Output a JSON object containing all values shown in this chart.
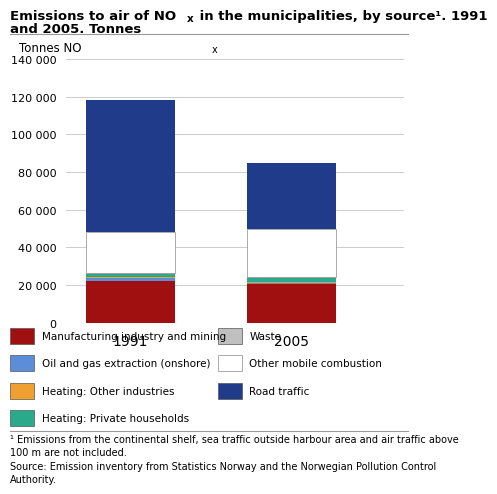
{
  "title": "Emissions to air of NO",
  "title_x_sub": "x",
  "title_rest": " in the municipalities, by source¹. 1991\nand 2005. Tonnes",
  "ylabel": "Tonnes NO",
  "ylabel_sub": "x",
  "years": [
    "1991",
    "2005"
  ],
  "categories": [
    "Manufacturing industry and mining",
    "Oil and gas extraction (onshore)",
    "Heating: Other industries",
    "Heating: Private households",
    "Waste",
    "Other mobile combustion",
    "Road traffic"
  ],
  "values_1991": [
    22000,
    1500,
    800,
    1500,
    500,
    22000,
    70000
  ],
  "values_2005": [
    20500,
    700,
    600,
    2200,
    500,
    25500,
    35000
  ],
  "colors": [
    "#a01010",
    "#5b8dd9",
    "#f0a030",
    "#2aaa8a",
    "#c0c0c0",
    "#ffffff",
    "#1f3b8a"
  ],
  "ylim": [
    0,
    140000
  ],
  "yticks": [
    0,
    20000,
    40000,
    60000,
    80000,
    100000,
    120000,
    140000
  ],
  "ytick_labels": [
    "0",
    "20 000",
    "40 000",
    "60 000",
    "80 000",
    "100 000",
    "120 000",
    "140 000"
  ],
  "footnote_line1": "¹ Emissions from the continental shelf, sea traffic outside harbour area and air traffic above",
  "footnote_line2": "100 m are not included.",
  "footnote_line3": "Source: Emission inventory from Statistics Norway and the Norwegian Pollution Control",
  "footnote_line4": "Authority.",
  "background_color": "#ffffff"
}
